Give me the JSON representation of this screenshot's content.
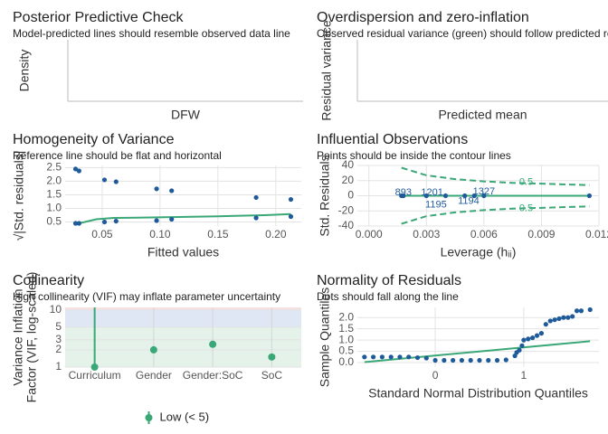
{
  "chart_data": [
    {
      "type": "line",
      "title": "Posterior Predictive Check",
      "subtitle": "Model-predicted lines should resemble observed data line",
      "xlabel": "DFW",
      "ylabel": "Density"
    },
    {
      "type": "scatter",
      "title": "Overdispersion and zero-inflation",
      "subtitle": "Observed residual variance (green) should follow predicted residual variance (blue)",
      "xlabel": "Predicted mean",
      "ylabel": "Residual variance"
    },
    {
      "type": "scatter",
      "title": "Homogeneity of Variance",
      "subtitle": "Reference line should be flat and horizontal",
      "xlabel": "Fitted values",
      "ylabel": "√|Std. residuals|",
      "xlim": [
        0.018,
        0.222
      ],
      "ylim": [
        0.35,
        2.58
      ],
      "xticks": [
        0.05,
        {
          "value": 0.1,
          "label": "0.10"
        },
        0.15,
        {
          "value": 0.2,
          "label": "0.20"
        }
      ],
      "yticks": [
        0.5,
        {
          "value": 1,
          "label": "1.0"
        },
        1.5,
        {
          "value": 2,
          "label": "2.0"
        },
        2.5
      ],
      "grid": true,
      "point_color": "#1f5a9a",
      "points": {
        "x": [
          0.027,
          0.03,
          0.027,
          0.03,
          0.052,
          0.062,
          0.052,
          0.062,
          0.097,
          0.11,
          0.097,
          0.11,
          0.183,
          0.213,
          0.183,
          0.213
        ],
        "y": [
          2.45,
          2.38,
          0.45,
          0.45,
          2.05,
          1.98,
          0.5,
          0.53,
          1.72,
          1.65,
          0.55,
          0.6,
          1.4,
          1.33,
          0.65,
          0.7
        ]
      },
      "series": [
        {
          "color": "#3aa776",
          "dash": false,
          "x": [
            0.027,
            0.035,
            0.045,
            0.06,
            0.08,
            0.11,
            0.15,
            0.19,
            0.213
          ],
          "y": [
            0.42,
            0.5,
            0.6,
            0.65,
            0.66,
            0.68,
            0.71,
            0.75,
            0.79
          ]
        }
      ]
    },
    {
      "type": "scatter",
      "title": "Influential Observations",
      "subtitle": "Points should be inside the contour lines",
      "xlabel": "Leverage (hᵢᵢ)",
      "ylabel": "Std. Residuals",
      "xlim": [
        -0.0006,
        0.012
      ],
      "ylim": [
        -40,
        40
      ],
      "xticks": [
        {
          "value": 0,
          "label": "0.000"
        },
        {
          "value": 0.003,
          "label": "0.003"
        },
        {
          "value": 0.006,
          "label": "0.006"
        },
        {
          "value": 0.009,
          "label": "0.009"
        },
        {
          "value": 0.012,
          "label": "0.012"
        }
      ],
      "yticks": [
        -40,
        -20,
        0,
        20,
        40
      ],
      "grid": true,
      "point_color": "#1f5a9a",
      "points": {
        "x": [
          0.0017,
          0.0018,
          0.003,
          0.004,
          0.005,
          0.0055,
          0.006,
          0.0115
        ],
        "y": [
          0,
          0,
          0,
          0,
          0,
          0,
          0,
          0
        ]
      },
      "series": [
        {
          "color": "#3aa776",
          "dash": false,
          "x": [
            0.0017,
            0.0115
          ],
          "y": [
            0,
            0
          ]
        },
        {
          "color": "#3aa776",
          "dash": true,
          "x": [
            0.0017,
            0.003,
            0.0045,
            0.006,
            0.0075,
            0.009,
            0.0115
          ],
          "y": [
            37,
            27,
            22,
            19,
            17,
            16,
            14
          ]
        },
        {
          "color": "#3aa776",
          "dash": true,
          "x": [
            0.0017,
            0.003,
            0.0045,
            0.006,
            0.0075,
            0.009,
            0.0115
          ],
          "y": [
            -37,
            -27,
            -22,
            -19,
            -17,
            -16,
            -14
          ]
        }
      ],
      "annotations": [
        {
          "text": "893",
          "x": 0.0018,
          "y": 4,
          "color": "#1f5a9a"
        },
        {
          "text": "1201",
          "x": 0.0033,
          "y": 4,
          "color": "#1f5a9a"
        },
        {
          "text": "1327",
          "x": 0.006,
          "y": 5,
          "color": "#1f5a9a"
        },
        {
          "text": "1194",
          "x": 0.0052,
          "y": -7,
          "color": "#1f5a9a"
        },
        {
          "text": "1195",
          "x": 0.0035,
          "y": -12,
          "color": "#1f5a9a"
        },
        {
          "text": "0.5",
          "x": 0.0082,
          "y": 18,
          "color": "#3aa776"
        },
        {
          "text": "0.5",
          "x": 0.0082,
          "y": -17,
          "color": "#3aa776"
        }
      ]
    },
    {
      "type": "dot",
      "title": "Collinearity",
      "subtitle": "High collinearity (VIF) may inflate parameter uncertainty",
      "ylabel": [
        "Variance Inflation",
        "Factor (VIF, log-scaled)"
      ],
      "log_y": true,
      "ylim": [
        1,
        11
      ],
      "yticks": [
        1,
        2,
        3,
        5,
        10
      ],
      "grid": true,
      "categories": [
        "Curriculum",
        "Gender",
        "Gender:SoC",
        "SoC"
      ],
      "values": [
        1,
        2,
        2.5,
        1.5
      ],
      "ci_high": [
        11,
        null,
        null,
        null
      ],
      "color": "#3aa776",
      "zones": [
        {
          "from": 1,
          "to": 5,
          "color": "#e4f2ea"
        },
        {
          "from": 5,
          "to": 10,
          "color": "#dfe7f5"
        },
        {
          "from": 10,
          "to": 11,
          "color": "#f6e0e0"
        }
      ],
      "legend": "Low (< 5)"
    },
    {
      "type": "scatter",
      "title": "Normality of Residuals",
      "subtitle": "Dots should fall along the line",
      "xlabel": "Standard Normal Distribution Quantiles",
      "ylabel": "Sample Quantiles",
      "xlim": [
        -0.88,
        1.85
      ],
      "ylim": [
        -0.2,
        2.45
      ],
      "xticks": [
        0,
        1
      ],
      "yticks": [
        {
          "value": 0,
          "label": "0.0"
        },
        0.5,
        {
          "value": 1,
          "label": "1.0"
        },
        1.5,
        {
          "value": 2,
          "label": "2.0"
        }
      ],
      "grid": true,
      "point_color": "#1f5a9a",
      "points": {
        "x": [
          -0.8,
          -0.7,
          -0.6,
          -0.5,
          -0.4,
          -0.3,
          -0.2,
          -0.1,
          0,
          0.1,
          0.2,
          0.3,
          0.4,
          0.5,
          0.6,
          0.7,
          0.8,
          0.9,
          0.92,
          0.95,
          0.98,
          1.0,
          1.05,
          1.1,
          1.15,
          1.2,
          1.25,
          1.3,
          1.35,
          1.4,
          1.45,
          1.5,
          1.55,
          1.6,
          1.65,
          1.75
        ],
        "y": [
          0.25,
          0.25,
          0.25,
          0.25,
          0.25,
          0.25,
          0.22,
          0.2,
          0.1,
          0.1,
          0.1,
          0.1,
          0.1,
          0.1,
          0.1,
          0.1,
          0.12,
          0.3,
          0.45,
          0.55,
          0.75,
          1.0,
          1.05,
          1.1,
          1.2,
          1.3,
          1.7,
          1.85,
          1.9,
          1.95,
          2.0,
          2.0,
          2.05,
          2.3,
          2.3,
          2.35
        ]
      },
      "series": [
        {
          "color": "#3aa776",
          "dash": false,
          "x": [
            -0.8,
            1.75
          ],
          "y": [
            0.02,
            0.95
          ]
        }
      ]
    }
  ]
}
